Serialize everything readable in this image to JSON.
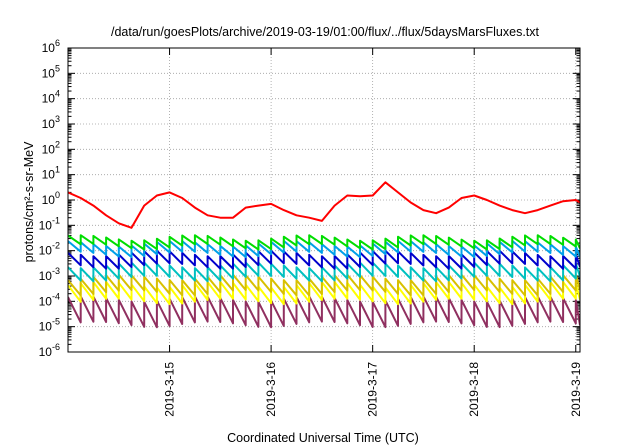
{
  "chart_data": {
    "type": "line",
    "title": "/data/run/goesPlots/archive/2019-03-19/01:00/flux/../flux/5daysMarsFluxes.txt",
    "xlabel": "Coordinated Universal Time (UTC)",
    "ylabel": "protons/cm²-s-sr-MeV",
    "y_scale": "log",
    "ylim": [
      1e-06,
      1000000.0
    ],
    "xlim": [
      "2019-03-14",
      "2019-03-19 01:00"
    ],
    "x_ticks": [
      "2019-3-15",
      "2019-3-16",
      "2019-3-17",
      "2019-3-18",
      "2019-3-19"
    ],
    "y_tick_exponents": [
      -6,
      -5,
      -4,
      -3,
      -2,
      -1,
      0,
      1,
      2,
      3,
      4,
      5,
      6
    ],
    "grid": true,
    "sawtooth_period_hours": 3,
    "series": [
      {
        "color": "#ff0000",
        "x": [
          "2019-03-14 00:00",
          "2019-03-14 03:00",
          "2019-03-14 06:00",
          "2019-03-14 09:00",
          "2019-03-14 12:00",
          "2019-03-14 15:00",
          "2019-03-14 18:00",
          "2019-03-14 21:00",
          "2019-03-15 00:00",
          "2019-03-15 03:00",
          "2019-03-15 06:00",
          "2019-03-15 09:00",
          "2019-03-15 12:00",
          "2019-03-15 15:00",
          "2019-03-15 18:00",
          "2019-03-15 21:00",
          "2019-03-16 00:00",
          "2019-03-16 03:00",
          "2019-03-16 06:00",
          "2019-03-16 09:00",
          "2019-03-16 12:00",
          "2019-03-16 15:00",
          "2019-03-16 18:00",
          "2019-03-16 21:00",
          "2019-03-17 00:00",
          "2019-03-17 03:00",
          "2019-03-17 06:00",
          "2019-03-17 09:00",
          "2019-03-17 12:00",
          "2019-03-17 15:00",
          "2019-03-17 18:00",
          "2019-03-17 21:00",
          "2019-03-18 00:00",
          "2019-03-18 03:00",
          "2019-03-18 06:00",
          "2019-03-18 09:00",
          "2019-03-18 12:00",
          "2019-03-18 15:00",
          "2019-03-18 18:00",
          "2019-03-18 21:00",
          "2019-03-19 00:00",
          "2019-03-19 01:00"
        ],
        "y": [
          2.0,
          1.2,
          0.6,
          0.25,
          0.12,
          0.08,
          0.6,
          1.5,
          2.0,
          1.2,
          0.5,
          0.25,
          0.2,
          0.2,
          0.5,
          0.6,
          0.7,
          0.4,
          0.25,
          0.2,
          0.15,
          0.6,
          1.5,
          1.4,
          1.5,
          5.0,
          2.0,
          0.8,
          0.4,
          0.3,
          0.5,
          1.2,
          1.5,
          1.0,
          0.6,
          0.4,
          0.3,
          0.4,
          0.6,
          0.9,
          1.0,
          0.8
        ]
      },
      {
        "color": "#00dd00",
        "mean": 0.022,
        "decay_per_cycle": 0.45
      },
      {
        "color": "#00a0e8",
        "mean": 0.012,
        "decay_per_cycle": 0.38
      },
      {
        "color": "#0000cc",
        "mean": 0.0045,
        "decay_per_cycle": 0.32
      },
      {
        "color": "#00c0c0",
        "mean": 0.0015,
        "decay_per_cycle": 0.3
      },
      {
        "color": "#d8c000",
        "mean": 0.00045,
        "decay_per_cycle": 0.25
      },
      {
        "color": "#ffff00",
        "mean": 0.00022,
        "decay_per_cycle": 0.22
      },
      {
        "color": "#903060",
        "mean": 4e-05,
        "decay_per_cycle": 0.1
      }
    ]
  }
}
